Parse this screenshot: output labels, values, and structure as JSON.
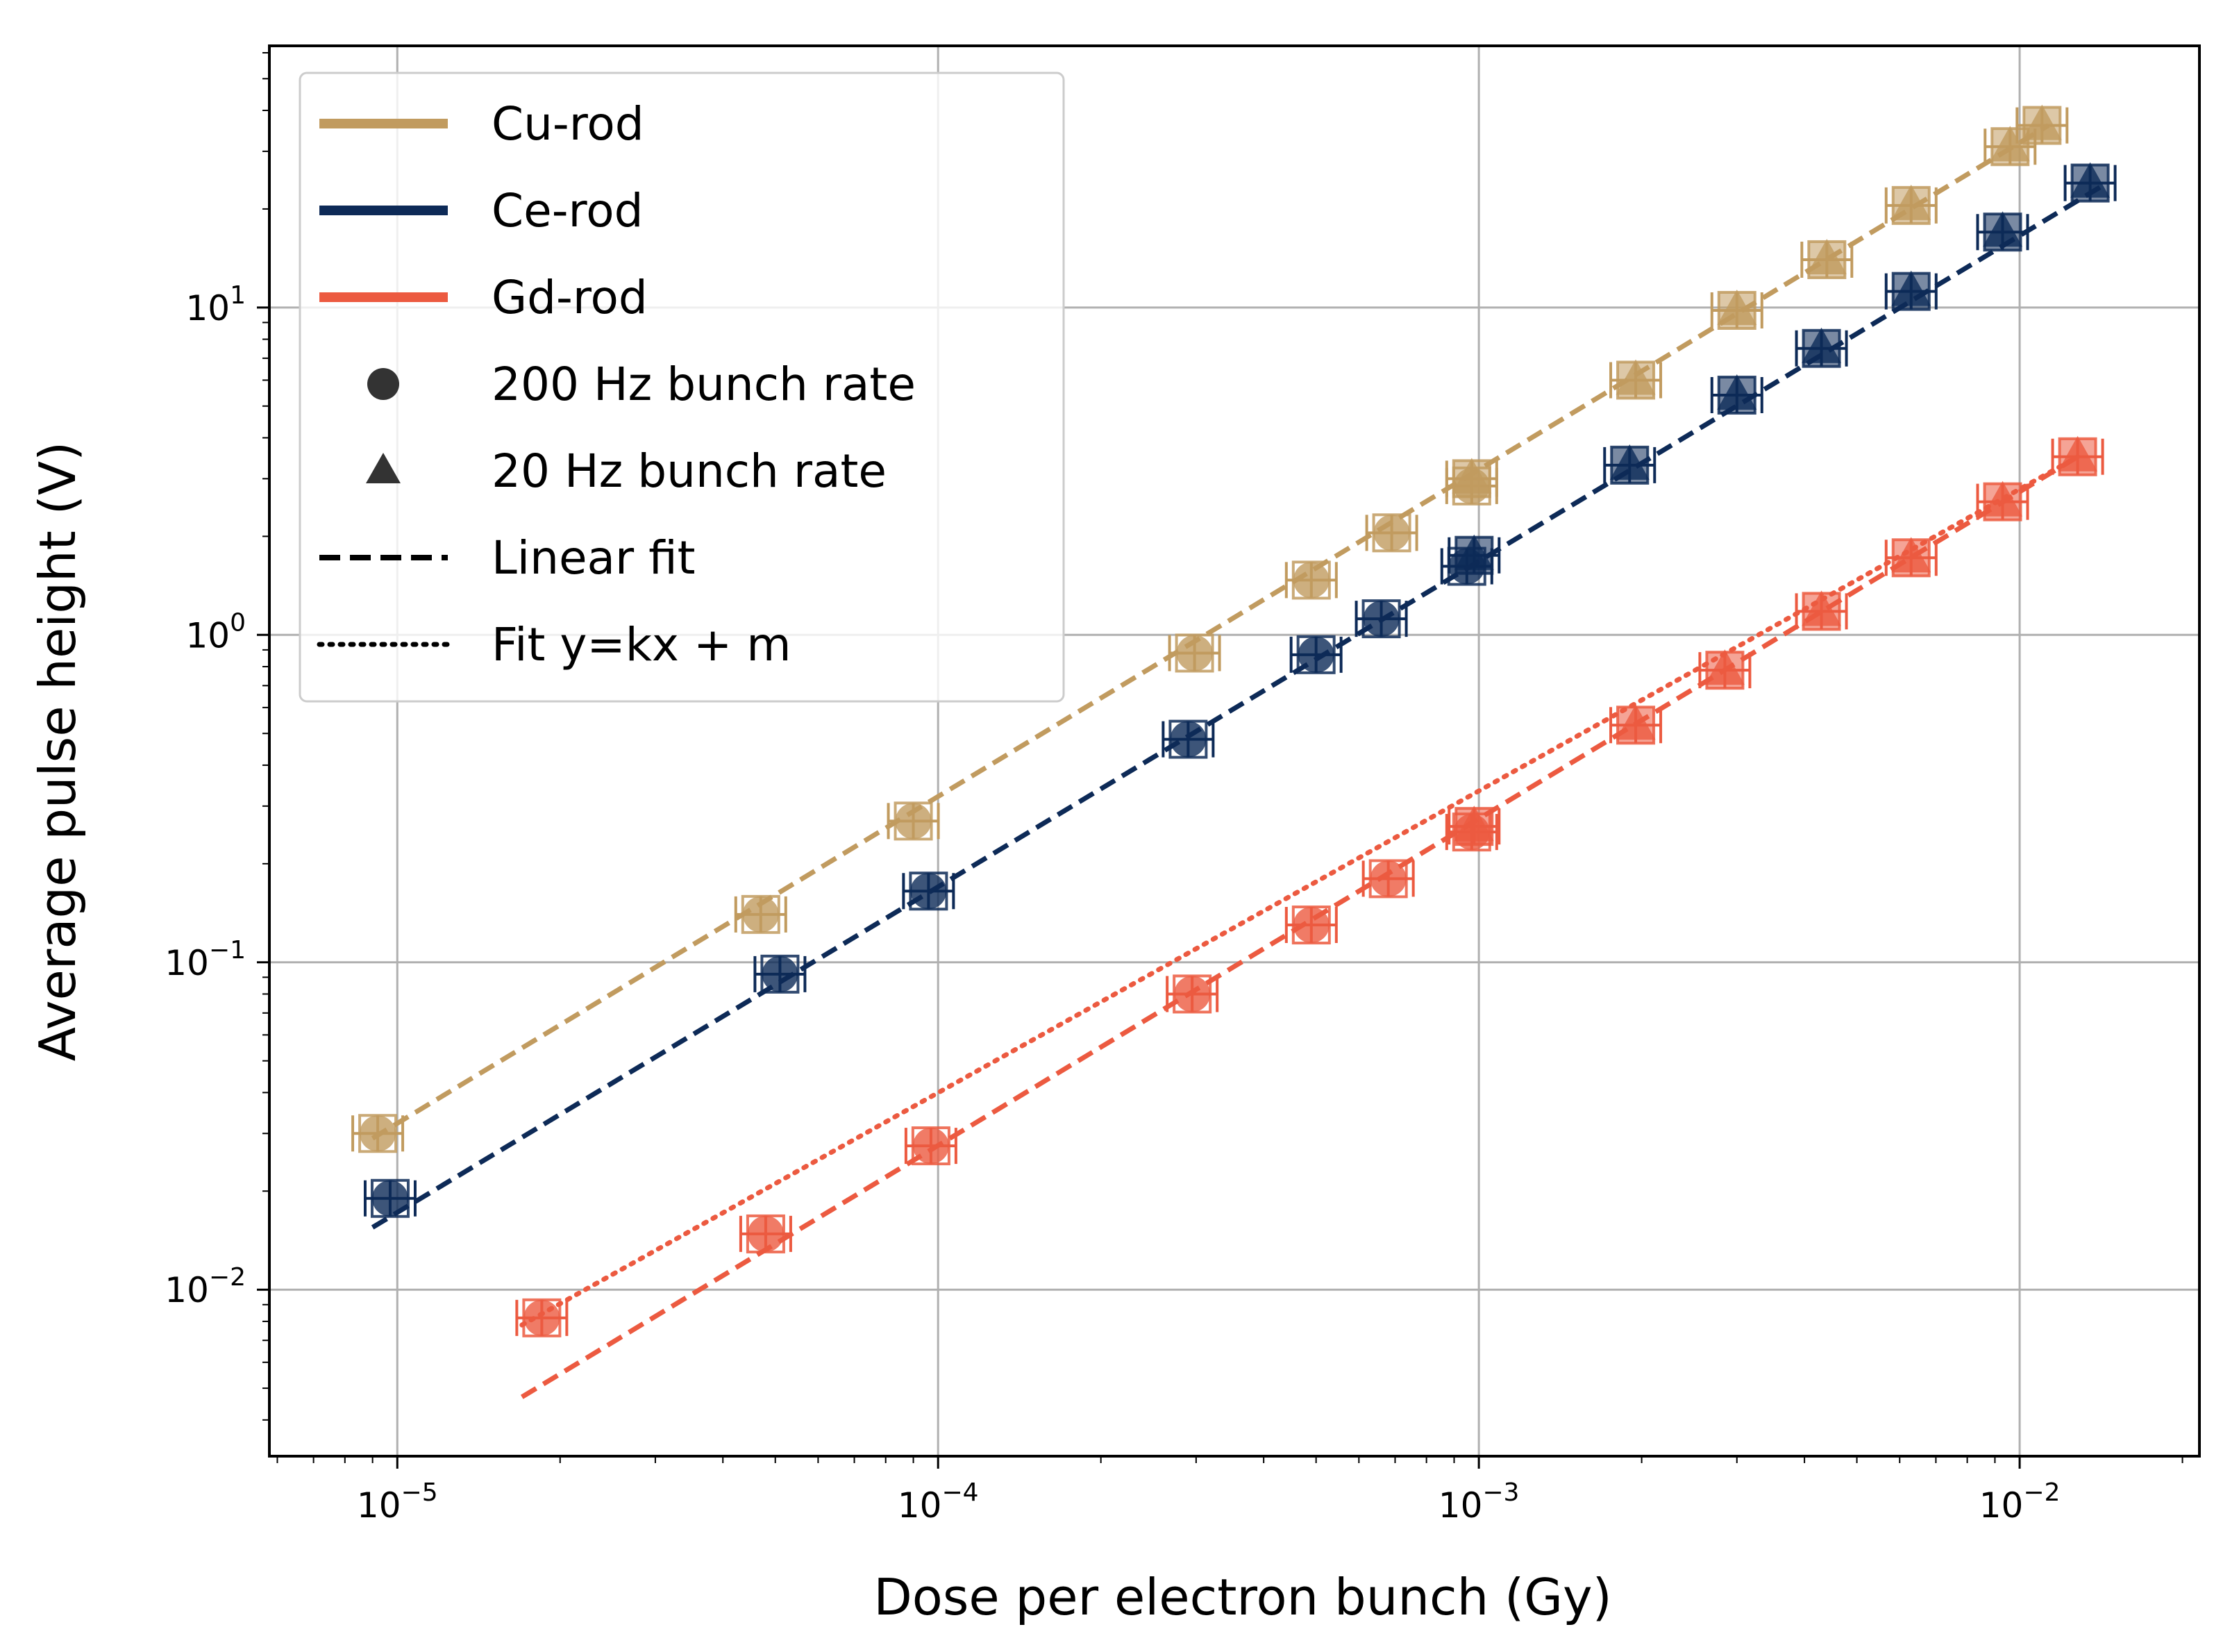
{
  "chart_data": {
    "type": "scatter",
    "title": "",
    "xlabel": "Dose per electron bunch (Gy)",
    "ylabel": "Average pulse height (V)",
    "xscale": "log",
    "yscale": "log",
    "xlim": [
      5.8e-06,
      0.0215
    ],
    "ylim": [
      0.0031,
      63
    ],
    "grid": true,
    "legend_position": "upper-left",
    "x_ticks": [
      {
        "base": "10",
        "exp": "−5"
      },
      {
        "base": "10",
        "exp": "−4"
      },
      {
        "base": "10",
        "exp": "−3"
      },
      {
        "base": "10",
        "exp": "−2"
      }
    ],
    "y_ticks": [
      {
        "base": "10",
        "exp": "−2"
      },
      {
        "base": "10",
        "exp": "−1"
      },
      {
        "base": "10",
        "exp": "0"
      },
      {
        "base": "10",
        "exp": "1"
      }
    ],
    "legend": [
      {
        "label": "Cu-rod",
        "kind": "line",
        "color": "#c19b5f"
      },
      {
        "label": "Ce-rod",
        "kind": "line",
        "color": "#0d2a57"
      },
      {
        "label": "Gd-rod",
        "kind": "line",
        "color": "#ec5a40"
      },
      {
        "label": "200 Hz bunch rate",
        "kind": "circle",
        "color": "#333333"
      },
      {
        "label": "20 Hz bunch rate",
        "kind": "triangle",
        "color": "#333333"
      },
      {
        "label": "Linear fit",
        "kind": "dashed",
        "color": "#000000"
      },
      {
        "label": "Fit y=kx + m",
        "kind": "dotted",
        "color": "#000000"
      }
    ],
    "series": [
      {
        "name": "Cu-rod",
        "color": "#c19b5f",
        "circles": [
          {
            "x": 9.2e-06,
            "y": 0.03
          },
          {
            "x": 4.7e-05,
            "y": 0.14
          },
          {
            "x": 9e-05,
            "y": 0.27
          },
          {
            "x": 0.000298,
            "y": 0.88
          },
          {
            "x": 0.00049,
            "y": 1.47
          },
          {
            "x": 0.00069,
            "y": 2.05
          },
          {
            "x": 0.00097,
            "y": 2.85
          }
        ],
        "triangles": [
          {
            "x": 0.00097,
            "y": 3.0
          },
          {
            "x": 0.00195,
            "y": 6.0
          },
          {
            "x": 0.003,
            "y": 9.8
          },
          {
            "x": 0.0044,
            "y": 14.0
          },
          {
            "x": 0.0063,
            "y": 20.5
          },
          {
            "x": 0.0096,
            "y": 31.0
          },
          {
            "x": 0.011,
            "y": 36.0
          }
        ],
        "fit_dashed": {
          "x": [
            9e-06,
            0.0113
          ],
          "y": [
            0.029,
            36.0
          ]
        }
      },
      {
        "name": "Ce-rod",
        "color": "#0d2a57",
        "circles": [
          {
            "x": 9.7e-06,
            "y": 0.019
          },
          {
            "x": 5.1e-05,
            "y": 0.092
          },
          {
            "x": 9.6e-05,
            "y": 0.165
          },
          {
            "x": 0.00029,
            "y": 0.48
          },
          {
            "x": 0.0005,
            "y": 0.87
          },
          {
            "x": 0.00066,
            "y": 1.12
          },
          {
            "x": 0.00095,
            "y": 1.62
          }
        ],
        "triangles": [
          {
            "x": 0.00098,
            "y": 1.75
          },
          {
            "x": 0.0019,
            "y": 3.3
          },
          {
            "x": 0.003,
            "y": 5.4
          },
          {
            "x": 0.0043,
            "y": 7.5
          },
          {
            "x": 0.0063,
            "y": 11.2
          },
          {
            "x": 0.0093,
            "y": 17.0
          },
          {
            "x": 0.0135,
            "y": 24.0
          }
        ],
        "fit_dashed": {
          "x": [
            9e-06,
            0.0142
          ],
          "y": [
            0.0155,
            23.5
          ]
        }
      },
      {
        "name": "Gd-rod",
        "color": "#ec5a40",
        "circles": [
          {
            "x": 1.85e-05,
            "y": 0.0082
          },
          {
            "x": 4.8e-05,
            "y": 0.0148
          },
          {
            "x": 9.7e-05,
            "y": 0.0275
          },
          {
            "x": 0.000295,
            "y": 0.08
          },
          {
            "x": 0.00049,
            "y": 0.13
          },
          {
            "x": 0.00068,
            "y": 0.18
          },
          {
            "x": 0.00097,
            "y": 0.25
          }
        ],
        "triangles": [
          {
            "x": 0.00098,
            "y": 0.26
          },
          {
            "x": 0.00195,
            "y": 0.53
          },
          {
            "x": 0.00285,
            "y": 0.78
          },
          {
            "x": 0.0043,
            "y": 1.18
          },
          {
            "x": 0.0063,
            "y": 1.72
          },
          {
            "x": 0.0093,
            "y": 2.55
          },
          {
            "x": 0.0128,
            "y": 3.5
          }
        ],
        "fit_dashed": {
          "x": [
            1.7e-05,
            0.0128
          ],
          "y": [
            0.0047,
            3.5
          ]
        },
        "fit_dotted": {
          "x": [
            1.7e-05,
            0.0128
          ],
          "y": [
            0.0078,
            3.5
          ]
        }
      }
    ]
  }
}
